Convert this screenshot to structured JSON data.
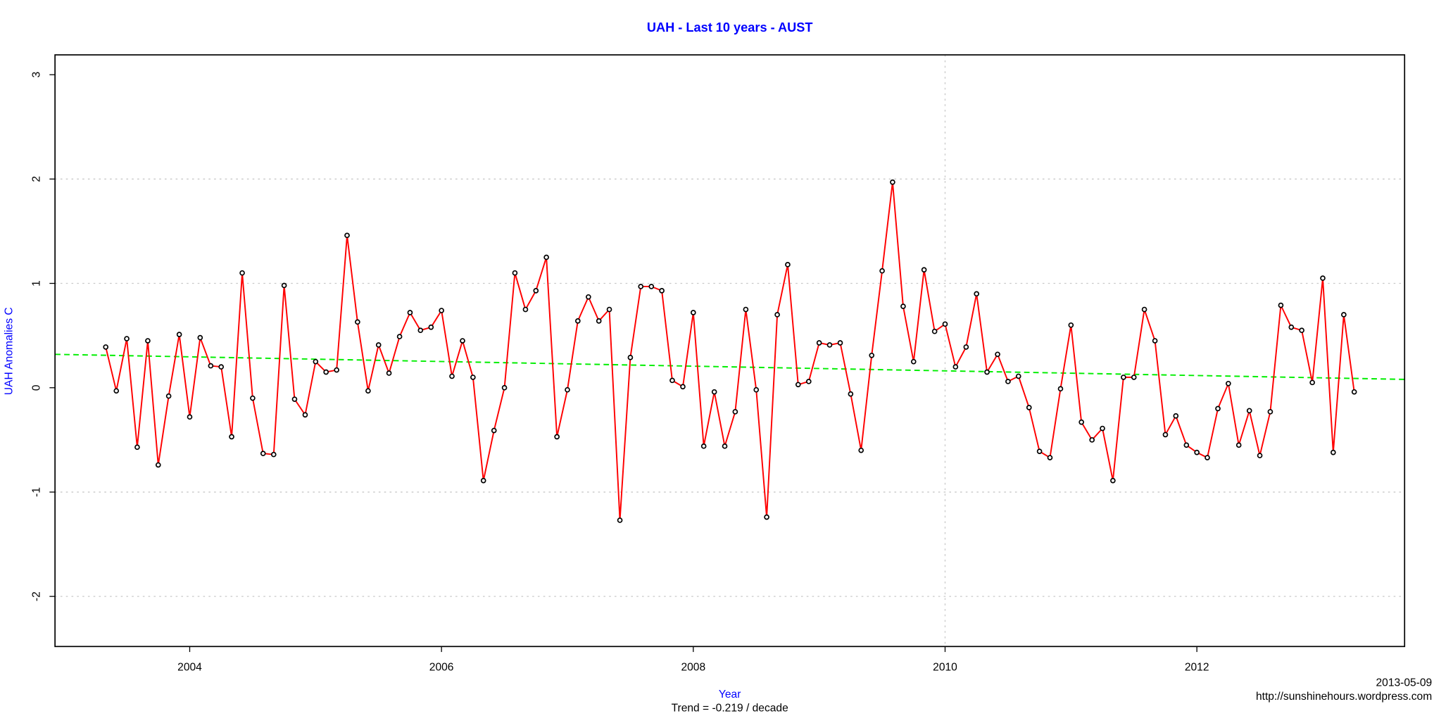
{
  "chart_data": {
    "type": "line",
    "title": "UAH - Last 10 years - AUST",
    "x_label": "Year",
    "y_label": "UAH Anomalies C",
    "subtitle": "Trend = -0.219 / decade",
    "date": "2013-05-09",
    "source": "http://sunshinehours.wordpress.com",
    "xlim": [
      2002.93,
      2013.65
    ],
    "ylim": [
      -2.48,
      3.19
    ],
    "xticks": [
      2004,
      2006,
      2008,
      2010,
      2012
    ],
    "yticks": [
      -2,
      -1,
      0,
      1,
      2,
      3
    ],
    "grid_x": [
      2010
    ],
    "grid_y": [
      -2,
      -1,
      1,
      2
    ],
    "x": [
      2003.333,
      2003.417,
      2003.5,
      2003.583,
      2003.667,
      2003.75,
      2003.833,
      2003.917,
      2004,
      2004.083,
      2004.167,
      2004.25,
      2004.333,
      2004.417,
      2004.5,
      2004.583,
      2004.667,
      2004.75,
      2004.833,
      2004.917,
      2005,
      2005.083,
      2005.167,
      2005.25,
      2005.333,
      2005.417,
      2005.5,
      2005.583,
      2005.667,
      2005.75,
      2005.833,
      2005.917,
      2006,
      2006.083,
      2006.167,
      2006.25,
      2006.333,
      2006.417,
      2006.5,
      2006.583,
      2006.667,
      2006.75,
      2006.833,
      2006.917,
      2007,
      2007.083,
      2007.167,
      2007.25,
      2007.333,
      2007.417,
      2007.5,
      2007.583,
      2007.667,
      2007.75,
      2007.833,
      2007.917,
      2008,
      2008.083,
      2008.167,
      2008.25,
      2008.333,
      2008.417,
      2008.5,
      2008.583,
      2008.667,
      2008.75,
      2008.833,
      2008.917,
      2009,
      2009.083,
      2009.167,
      2009.25,
      2009.333,
      2009.417,
      2009.5,
      2009.583,
      2009.667,
      2009.75,
      2009.833,
      2009.917,
      2010,
      2010.083,
      2010.167,
      2010.25,
      2010.333,
      2010.417,
      2010.5,
      2010.583,
      2010.667,
      2010.75,
      2010.833,
      2010.917,
      2011,
      2011.083,
      2011.167,
      2011.25,
      2011.333,
      2011.417,
      2011.5,
      2011.583,
      2011.667,
      2011.75,
      2011.833,
      2011.917,
      2012,
      2012.083,
      2012.167,
      2012.25,
      2012.333,
      2012.417,
      2012.5,
      2012.583,
      2012.667,
      2012.75,
      2012.833,
      2012.917,
      2013,
      2013.083,
      2013.167,
      2013.25
    ],
    "series": [
      {
        "color": "#ff0000",
        "values": [
          0.39,
          -0.03,
          0.47,
          -0.57,
          0.45,
          -0.74,
          -0.08,
          0.51,
          -0.28,
          0.48,
          0.21,
          0.2,
          -0.47,
          1.1,
          -0.1,
          -0.63,
          -0.64,
          0.98,
          -0.11,
          -0.26,
          0.25,
          0.15,
          0.17,
          1.46,
          0.63,
          -0.03,
          0.41,
          0.14,
          0.49,
          0.72,
          0.55,
          0.58,
          0.74,
          0.11,
          0.45,
          0.1,
          -0.89,
          -0.41,
          0.0,
          1.1,
          0.75,
          0.93,
          1.25,
          -0.47,
          -0.02,
          0.64,
          0.87,
          0.64,
          0.75,
          -1.27,
          0.29,
          0.97,
          0.97,
          0.93,
          0.07,
          0.01,
          0.72,
          -0.56,
          -0.04,
          -0.56,
          -0.23,
          0.75,
          -0.02,
          -1.24,
          0.7,
          1.18,
          0.03,
          0.06,
          0.43,
          0.41,
          0.43,
          -0.06,
          -0.6,
          0.31,
          1.12,
          1.97,
          0.78,
          0.25,
          1.13,
          0.54,
          0.61,
          0.2,
          0.39,
          0.9,
          0.15,
          0.32,
          0.06,
          0.11,
          -0.19,
          -0.61,
          -0.67,
          -0.01,
          0.6,
          -0.33,
          -0.5,
          -0.39,
          -0.89,
          0.1,
          0.1,
          0.75,
          0.45,
          -0.45,
          -0.27,
          -0.55,
          -0.62,
          -0.67,
          -0.2,
          0.04,
          -0.55,
          -0.22,
          -0.65,
          -0.23,
          0.79,
          0.58,
          0.55,
          0.05,
          1.05,
          -0.62,
          0.7,
          -0.04
        ]
      }
    ],
    "trend_line": {
      "color": "#00ee00",
      "x": [
        2002.93,
        2013.65
      ],
      "values": [
        0.32,
        0.08
      ]
    }
  }
}
